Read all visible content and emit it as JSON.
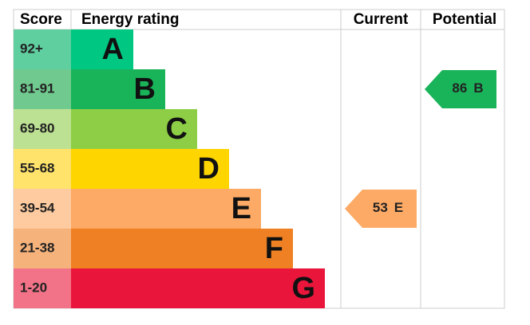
{
  "header": {
    "score": "Score",
    "rating": "Energy rating",
    "current": "Current",
    "potential": "Potential"
  },
  "bands": [
    {
      "score": "92+",
      "letter": "A",
      "color": "#00c781",
      "score_color": "#5fcfa0"
    },
    {
      "score": "81-91",
      "letter": "B",
      "color": "#19b459",
      "score_color": "#70c98e"
    },
    {
      "score": "69-80",
      "letter": "C",
      "color": "#8dce46",
      "score_color": "#bce192"
    },
    {
      "score": "55-68",
      "letter": "D",
      "color": "#ffd500",
      "score_color": "#ffe36a"
    },
    {
      "score": "39-54",
      "letter": "E",
      "color": "#fcaa65",
      "score_color": "#fdcb9f"
    },
    {
      "score": "21-38",
      "letter": "F",
      "color": "#ef8023",
      "score_color": "#f5b27b"
    },
    {
      "score": "1-20",
      "letter": "G",
      "color": "#e9153b",
      "score_color": "#f27387"
    }
  ],
  "current": {
    "value": 53,
    "letter": "E"
  },
  "potential": {
    "value": 86,
    "letter": "B"
  }
}
